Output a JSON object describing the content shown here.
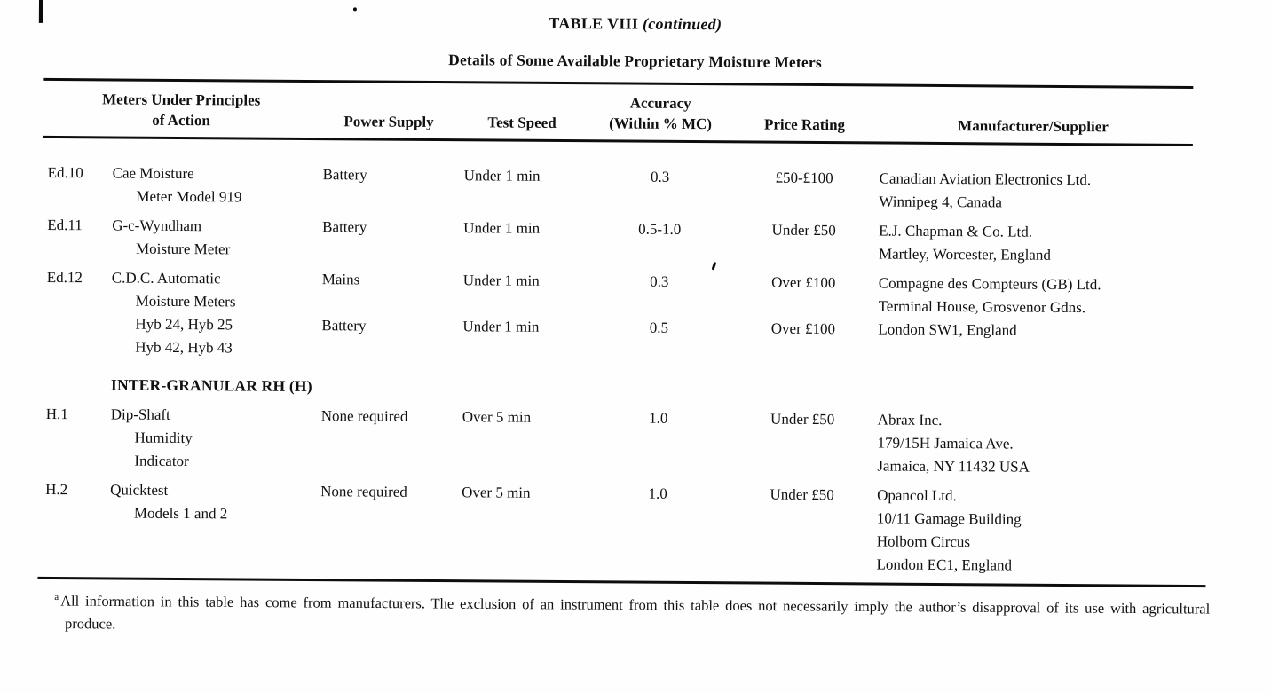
{
  "page": {
    "title": "TABLE VIII",
    "title_suffix": "(continued)",
    "subtitle": "Details of Some Available Proprietary Moisture Meters",
    "footnote_marker": "a",
    "footnote": "All information in this table has come from manufacturers. The exclusion of an instrument from this table does not necessarily imply the author’s disapproval of its use with agricultural produce."
  },
  "table": {
    "headers": {
      "meters_line1": "Meters Under Principles",
      "meters_line2": "of Action",
      "power": "Power Supply",
      "speed": "Test Speed",
      "accuracy_line1": "Accuracy",
      "accuracy_line2": "(Within % MC)",
      "price": "Price Rating",
      "manufacturer": "Manufacturer/Supplier"
    },
    "rows": [
      {
        "id": "Ed.10",
        "name": [
          "Cae Moisture",
          "Meter Model 919"
        ],
        "power": "Battery",
        "speed": "Under 1 min",
        "accuracy": "0.3",
        "price": "£50-£100",
        "mfr": [
          "Canadian Aviation Electronics Ltd.",
          "Winnipeg 4, Canada"
        ]
      },
      {
        "id": "Ed.11",
        "name": [
          "G-c-Wyndham",
          "Moisture Meter"
        ],
        "power": "Battery",
        "speed": "Under 1 min",
        "accuracy": "0.5-1.0",
        "price": "Under £50",
        "mfr": [
          "E.J. Chapman & Co. Ltd.",
          "Martley, Worcester, England"
        ]
      },
      {
        "id": "Ed.12",
        "name": [
          "C.D.C. Automatic",
          "Moisture Meters",
          "Hyb 24, Hyb 25",
          "Hyb 42, Hyb 43"
        ],
        "power": [
          "Mains",
          "",
          "Battery"
        ],
        "speed": [
          "Under 1 min",
          "",
          "Under 1 min"
        ],
        "accuracy": [
          "0.3",
          "",
          "0.5"
        ],
        "price": [
          "Over £100",
          "",
          "Over £100"
        ],
        "mfr": [
          "Compagne des Compteurs (GB) Ltd.",
          "Terminal House, Grosvenor Gdns.",
          "London SW1, England"
        ]
      },
      {
        "section": "INTER-GRANULAR RH (H)"
      },
      {
        "id": "H.1",
        "name": [
          "Dip-Shaft",
          "Humidity",
          "Indicator"
        ],
        "power": "None required",
        "speed": "Over 5 min",
        "accuracy": "1.0",
        "price": "Under £50",
        "mfr": [
          "Abrax Inc.",
          "179/15H Jamaica Ave.",
          "Jamaica, NY 11432 USA"
        ]
      },
      {
        "id": "H.2",
        "name": [
          "Quicktest",
          "Models 1 and 2"
        ],
        "power": "None required",
        "speed": "Over 5 min",
        "accuracy": "1.0",
        "price": "Under £50",
        "mfr": [
          "Opancol Ltd.",
          "10/11 Gamage Building",
          "Holborn Circus",
          "London EC1, England"
        ]
      }
    ]
  }
}
